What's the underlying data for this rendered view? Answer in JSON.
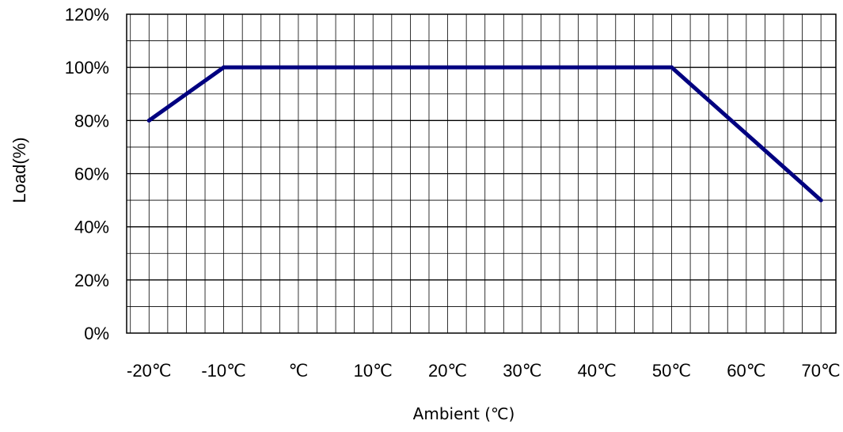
{
  "chart_data": {
    "type": "line",
    "title": "",
    "xlabel": "Ambient (℃)",
    "ylabel": "Load(%)",
    "x_tick_labels": [
      "-20℃",
      "-10℃",
      "℃",
      "10℃",
      "20℃",
      "30℃",
      "40℃",
      "50℃",
      "60℃",
      "70℃"
    ],
    "y_tick_labels": [
      "0%",
      "20%",
      "40%",
      "60%",
      "80%",
      "100%",
      "120%"
    ],
    "xlim": [
      -23,
      72
    ],
    "ylim": [
      0,
      120
    ],
    "grid": true,
    "legend": "none",
    "series": [
      {
        "color": "#000080",
        "points": [
          {
            "x": -20,
            "y": 80
          },
          {
            "x": -10,
            "y": 100
          },
          {
            "x": 50,
            "y": 100
          },
          {
            "x": 70,
            "y": 50
          }
        ]
      }
    ]
  }
}
